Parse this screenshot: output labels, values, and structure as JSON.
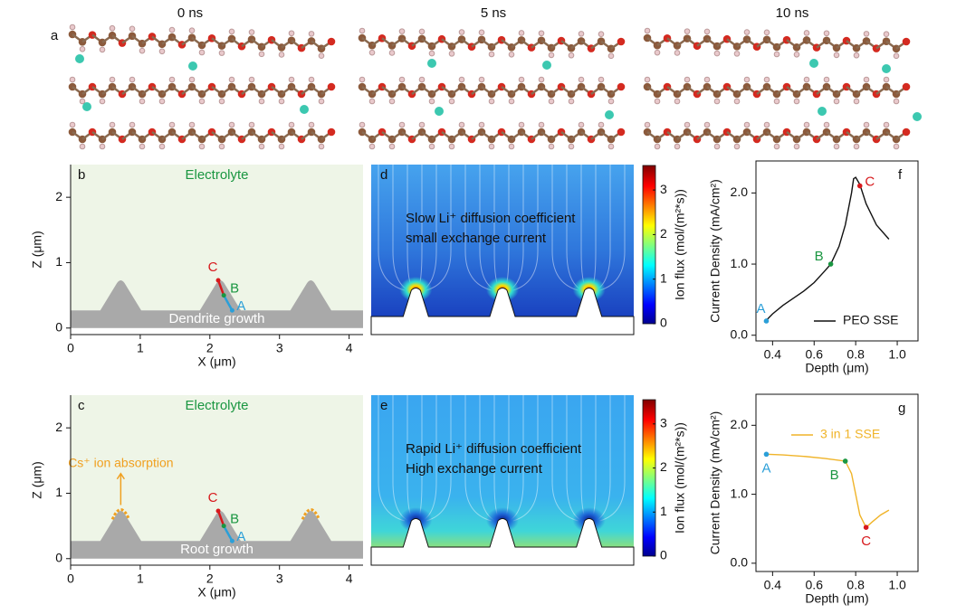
{
  "figure": {
    "panel": "a",
    "times": [
      "0 ns",
      "5 ns",
      "10 ns"
    ]
  },
  "chart_data": [
    {
      "type": "schematic",
      "panel": "b",
      "title": "Electrolyte",
      "base_label": "Dendrite growth",
      "xlabel": "X (μm)",
      "ylabel": "Z (μm)",
      "xlim": [
        0,
        4.2
      ],
      "ylim": [
        -0.1,
        2.5
      ],
      "xticks": [
        0,
        1,
        2,
        3,
        4
      ],
      "yticks": [
        0,
        1,
        2
      ],
      "points": [
        {
          "label": "C",
          "x": 2.12,
          "y": 0.73,
          "color": "#d7191c"
        },
        {
          "label": "B",
          "x": 2.2,
          "y": 0.5,
          "color": "#1a9641"
        },
        {
          "label": "A",
          "x": 2.32,
          "y": 0.27,
          "color": "#2b9fd8"
        }
      ]
    },
    {
      "type": "schematic",
      "panel": "c",
      "title": "Electrolyte",
      "base_label": "Root growth",
      "annotation": "Cs⁺ ion absorption",
      "xlabel": "X (μm)",
      "ylabel": "Z (μm)",
      "xlim": [
        0,
        4.2
      ],
      "ylim": [
        -0.1,
        2.5
      ],
      "xticks": [
        0,
        1,
        2,
        3,
        4
      ],
      "yticks": [
        0,
        1,
        2
      ],
      "points": [
        {
          "label": "C",
          "x": 2.12,
          "y": 0.73,
          "color": "#d7191c"
        },
        {
          "label": "B",
          "x": 2.2,
          "y": 0.5,
          "color": "#1a9641"
        },
        {
          "label": "A",
          "x": 2.32,
          "y": 0.27,
          "color": "#2b9fd8"
        }
      ]
    },
    {
      "type": "heatmap",
      "panel": "d",
      "text": [
        "Slow Li⁺ diffusion coefficient",
        "small exchange current"
      ],
      "colorbar_label": "Ion flux (mol/(m²*s))",
      "clim": [
        0,
        3.55
      ],
      "cticks": [
        0,
        1,
        2,
        3
      ]
    },
    {
      "type": "heatmap",
      "panel": "e",
      "text": [
        "Rapid Li⁺ diffusion coefficient",
        "High exchange current"
      ],
      "colorbar_label": "Ion flux (mol/(m²*s))",
      "clim": [
        0,
        3.55
      ],
      "cticks": [
        0,
        1,
        2,
        3
      ]
    },
    {
      "type": "line",
      "panel": "f",
      "xlabel": "Depth (μm)",
      "ylabel": "Current Density (mA/cm²)",
      "xlim": [
        0.32,
        1.1
      ],
      "ylim": [
        -0.08,
        2.45
      ],
      "xticks": [
        0.4,
        0.6,
        0.8,
        {
          "value": 1,
          "label": "1.0"
        }
      ],
      "yticks": [
        {
          "value": 0,
          "label": "0.0"
        },
        {
          "value": 1,
          "label": "1.0"
        },
        {
          "value": 2,
          "label": "2.0"
        }
      ],
      "legend": "lower right",
      "series": [
        {
          "name": "PEO SSE",
          "color": "#111111",
          "x": [
            0.36,
            0.4,
            0.45,
            0.5,
            0.55,
            0.6,
            0.65,
            0.68,
            0.72,
            0.75,
            0.78,
            0.79,
            0.8,
            0.82,
            0.85,
            0.9,
            0.96
          ],
          "values": [
            0.18,
            0.3,
            0.42,
            0.52,
            0.62,
            0.74,
            0.9,
            1.0,
            1.25,
            1.55,
            2.0,
            2.2,
            2.22,
            2.12,
            1.85,
            1.55,
            1.35
          ]
        }
      ],
      "points": [
        {
          "label": "A",
          "x": 0.37,
          "y": 0.2,
          "color": "#2b9fd8"
        },
        {
          "label": "B",
          "x": 0.68,
          "y": 1.0,
          "color": "#1a9641"
        },
        {
          "label": "C",
          "x": 0.82,
          "y": 2.1,
          "color": "#d7191c"
        }
      ]
    },
    {
      "type": "line",
      "panel": "g",
      "xlabel": "Depth (μm)",
      "ylabel": "Current Density (mA/cm²)",
      "xlim": [
        0.32,
        1.1
      ],
      "ylim": [
        -0.12,
        2.45
      ],
      "xticks": [
        0.4,
        0.6,
        0.8,
        {
          "value": 1,
          "label": "1.0"
        }
      ],
      "yticks": [
        {
          "value": 0,
          "label": "0.0"
        },
        {
          "value": 1,
          "label": "1.0"
        },
        {
          "value": 2,
          "label": "2.0"
        }
      ],
      "legend": "upper right",
      "series": [
        {
          "name": "3 in 1 SSE",
          "color": "#f0b429",
          "x": [
            0.37,
            0.45,
            0.55,
            0.65,
            0.75,
            0.78,
            0.8,
            0.82,
            0.85,
            0.88,
            0.92,
            0.96
          ],
          "values": [
            1.58,
            1.57,
            1.55,
            1.52,
            1.48,
            1.3,
            1.0,
            0.7,
            0.52,
            0.6,
            0.7,
            0.77
          ]
        }
      ],
      "points": [
        {
          "label": "A",
          "x": 0.37,
          "y": 1.58,
          "color": "#2b9fd8"
        },
        {
          "label": "B",
          "x": 0.75,
          "y": 1.48,
          "color": "#1a9641"
        },
        {
          "label": "C",
          "x": 0.85,
          "y": 0.52,
          "color": "#d7191c"
        }
      ]
    }
  ]
}
